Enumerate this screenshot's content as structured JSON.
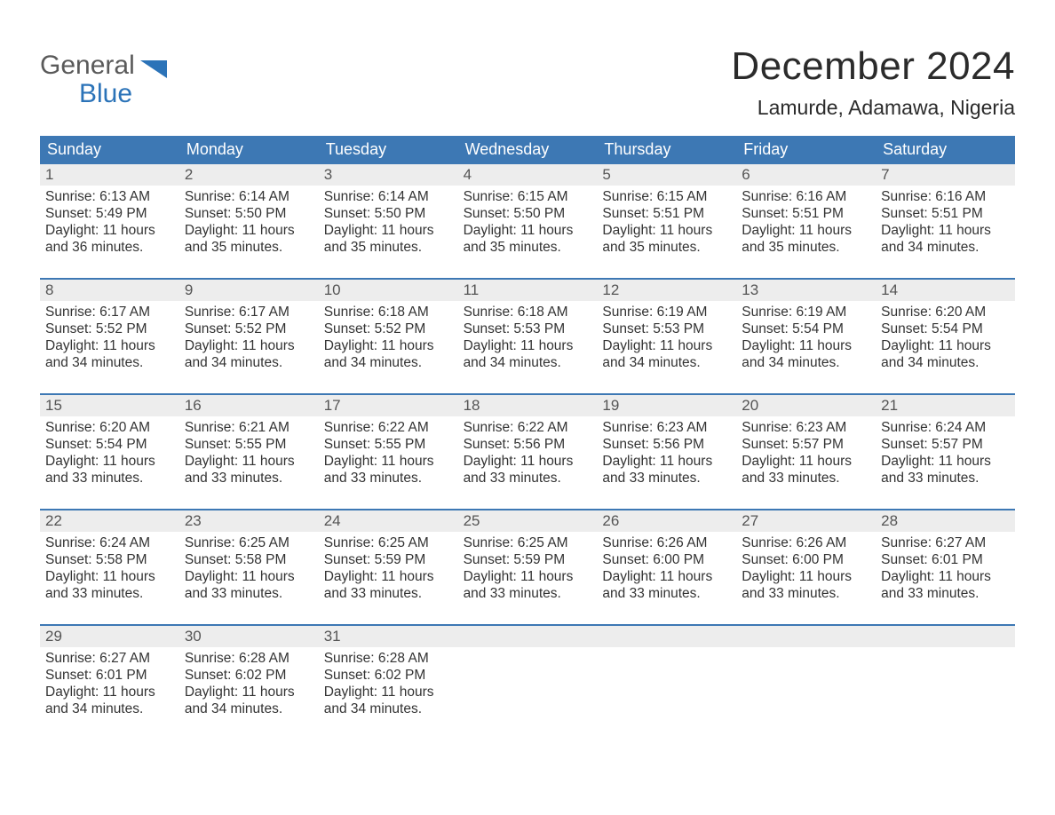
{
  "logo": {
    "word1": "General",
    "word2": "Blue"
  },
  "title": "December 2024",
  "subtitle": "Lamurde, Adamawa, Nigeria",
  "colors": {
    "header_blue": "#3d78b4",
    "accent_blue": "#2b73b8",
    "daynum_bg": "#ededed",
    "text": "#333333",
    "background": "#ffffff"
  },
  "weekdays": [
    "Sunday",
    "Monday",
    "Tuesday",
    "Wednesday",
    "Thursday",
    "Friday",
    "Saturday"
  ],
  "labels": {
    "sunrise": "Sunrise:",
    "sunset": "Sunset:",
    "daylight": "Daylight:"
  },
  "weeks": [
    [
      {
        "day": 1,
        "sunrise": "6:13 AM",
        "sunset": "5:49 PM",
        "daylight": "11 hours and 36 minutes."
      },
      {
        "day": 2,
        "sunrise": "6:14 AM",
        "sunset": "5:50 PM",
        "daylight": "11 hours and 35 minutes."
      },
      {
        "day": 3,
        "sunrise": "6:14 AM",
        "sunset": "5:50 PM",
        "daylight": "11 hours and 35 minutes."
      },
      {
        "day": 4,
        "sunrise": "6:15 AM",
        "sunset": "5:50 PM",
        "daylight": "11 hours and 35 minutes."
      },
      {
        "day": 5,
        "sunrise": "6:15 AM",
        "sunset": "5:51 PM",
        "daylight": "11 hours and 35 minutes."
      },
      {
        "day": 6,
        "sunrise": "6:16 AM",
        "sunset": "5:51 PM",
        "daylight": "11 hours and 35 minutes."
      },
      {
        "day": 7,
        "sunrise": "6:16 AM",
        "sunset": "5:51 PM",
        "daylight": "11 hours and 34 minutes."
      }
    ],
    [
      {
        "day": 8,
        "sunrise": "6:17 AM",
        "sunset": "5:52 PM",
        "daylight": "11 hours and 34 minutes."
      },
      {
        "day": 9,
        "sunrise": "6:17 AM",
        "sunset": "5:52 PM",
        "daylight": "11 hours and 34 minutes."
      },
      {
        "day": 10,
        "sunrise": "6:18 AM",
        "sunset": "5:52 PM",
        "daylight": "11 hours and 34 minutes."
      },
      {
        "day": 11,
        "sunrise": "6:18 AM",
        "sunset": "5:53 PM",
        "daylight": "11 hours and 34 minutes."
      },
      {
        "day": 12,
        "sunrise": "6:19 AM",
        "sunset": "5:53 PM",
        "daylight": "11 hours and 34 minutes."
      },
      {
        "day": 13,
        "sunrise": "6:19 AM",
        "sunset": "5:54 PM",
        "daylight": "11 hours and 34 minutes."
      },
      {
        "day": 14,
        "sunrise": "6:20 AM",
        "sunset": "5:54 PM",
        "daylight": "11 hours and 34 minutes."
      }
    ],
    [
      {
        "day": 15,
        "sunrise": "6:20 AM",
        "sunset": "5:54 PM",
        "daylight": "11 hours and 33 minutes."
      },
      {
        "day": 16,
        "sunrise": "6:21 AM",
        "sunset": "5:55 PM",
        "daylight": "11 hours and 33 minutes."
      },
      {
        "day": 17,
        "sunrise": "6:22 AM",
        "sunset": "5:55 PM",
        "daylight": "11 hours and 33 minutes."
      },
      {
        "day": 18,
        "sunrise": "6:22 AM",
        "sunset": "5:56 PM",
        "daylight": "11 hours and 33 minutes."
      },
      {
        "day": 19,
        "sunrise": "6:23 AM",
        "sunset": "5:56 PM",
        "daylight": "11 hours and 33 minutes."
      },
      {
        "day": 20,
        "sunrise": "6:23 AM",
        "sunset": "5:57 PM",
        "daylight": "11 hours and 33 minutes."
      },
      {
        "day": 21,
        "sunrise": "6:24 AM",
        "sunset": "5:57 PM",
        "daylight": "11 hours and 33 minutes."
      }
    ],
    [
      {
        "day": 22,
        "sunrise": "6:24 AM",
        "sunset": "5:58 PM",
        "daylight": "11 hours and 33 minutes."
      },
      {
        "day": 23,
        "sunrise": "6:25 AM",
        "sunset": "5:58 PM",
        "daylight": "11 hours and 33 minutes."
      },
      {
        "day": 24,
        "sunrise": "6:25 AM",
        "sunset": "5:59 PM",
        "daylight": "11 hours and 33 minutes."
      },
      {
        "day": 25,
        "sunrise": "6:25 AM",
        "sunset": "5:59 PM",
        "daylight": "11 hours and 33 minutes."
      },
      {
        "day": 26,
        "sunrise": "6:26 AM",
        "sunset": "6:00 PM",
        "daylight": "11 hours and 33 minutes."
      },
      {
        "day": 27,
        "sunrise": "6:26 AM",
        "sunset": "6:00 PM",
        "daylight": "11 hours and 33 minutes."
      },
      {
        "day": 28,
        "sunrise": "6:27 AM",
        "sunset": "6:01 PM",
        "daylight": "11 hours and 33 minutes."
      }
    ],
    [
      {
        "day": 29,
        "sunrise": "6:27 AM",
        "sunset": "6:01 PM",
        "daylight": "11 hours and 34 minutes."
      },
      {
        "day": 30,
        "sunrise": "6:28 AM",
        "sunset": "6:02 PM",
        "daylight": "11 hours and 34 minutes."
      },
      {
        "day": 31,
        "sunrise": "6:28 AM",
        "sunset": "6:02 PM",
        "daylight": "11 hours and 34 minutes."
      },
      null,
      null,
      null,
      null
    ]
  ]
}
